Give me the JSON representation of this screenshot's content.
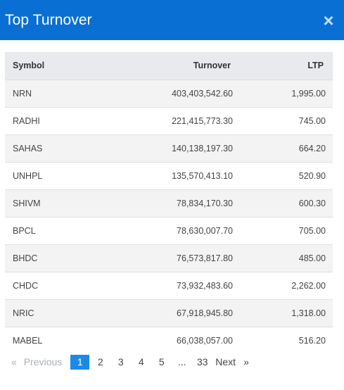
{
  "modal": {
    "title": "Top Turnover",
    "close_glyph": "×"
  },
  "table": {
    "headers": {
      "symbol": "Symbol",
      "turnover": "Turnover",
      "ltp": "LTP"
    },
    "rows": [
      {
        "symbol": "NRN",
        "turnover": "403,403,542.60",
        "ltp": "1,995.00"
      },
      {
        "symbol": "RADHI",
        "turnover": "221,415,773.30",
        "ltp": "745.00"
      },
      {
        "symbol": "SAHAS",
        "turnover": "140,138,197.30",
        "ltp": "664.20"
      },
      {
        "symbol": "UNHPL",
        "turnover": "135,570,413.10",
        "ltp": "520.90"
      },
      {
        "symbol": "SHIVM",
        "turnover": "78,834,170.30",
        "ltp": "600.30"
      },
      {
        "symbol": "BPCL",
        "turnover": "78,630,007.70",
        "ltp": "705.00"
      },
      {
        "symbol": "BHDC",
        "turnover": "76,573,817.80",
        "ltp": "485.00"
      },
      {
        "symbol": "CHDC",
        "turnover": "73,932,483.60",
        "ltp": "2,262.00"
      },
      {
        "symbol": "NRIC",
        "turnover": "67,918,945.80",
        "ltp": "1,318.00"
      },
      {
        "symbol": "MABEL",
        "turnover": "66,038,057.00",
        "ltp": "516.20"
      }
    ]
  },
  "pagination": {
    "prev_arrow": "«",
    "prev_label": "Previous",
    "pages": [
      "1",
      "2",
      "3",
      "4",
      "5"
    ],
    "ellipsis": "...",
    "last_page": "33",
    "next_label": "Next",
    "next_arrow": "»",
    "active_page": "1"
  },
  "colors": {
    "header_bg": "#0a6fd3",
    "active_page_bg": "#1a8ae6",
    "table_head_bg": "#e8eaed",
    "row_stripe": "#f3f3f4"
  }
}
